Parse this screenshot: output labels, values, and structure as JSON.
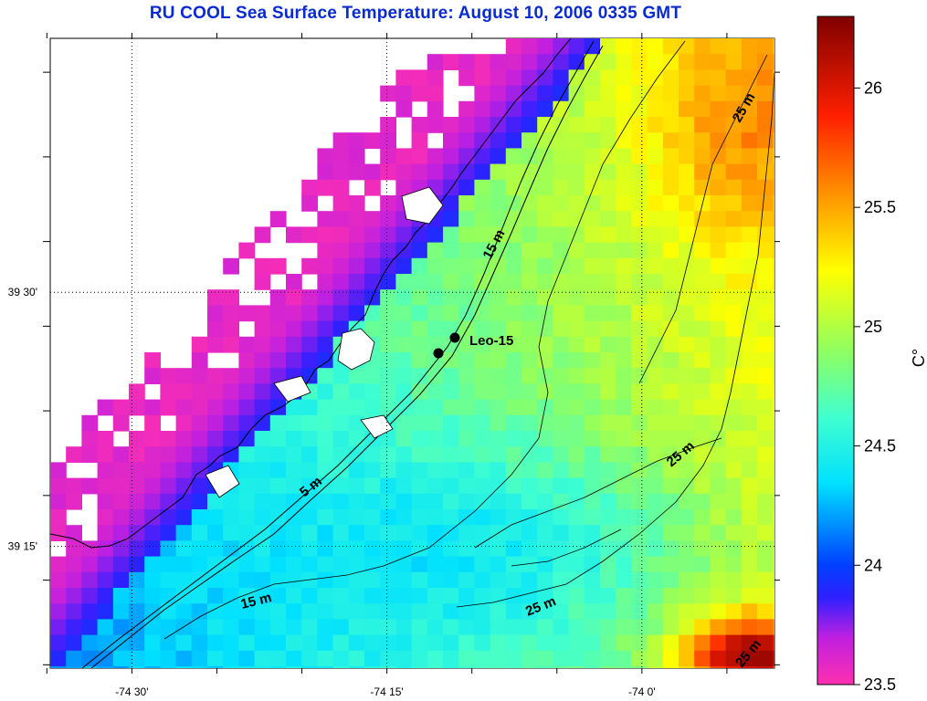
{
  "title": "RU COOL  Sea Surface Temperature:  August 10, 2006 0335 GMT",
  "map": {
    "lon_range": [
      -74.58,
      -73.87
    ],
    "lat_range": [
      39.13,
      39.75
    ],
    "lon_ticks": [
      {
        "value": -74.5,
        "label": "-74 30'"
      },
      {
        "value": -74.25,
        "label": "-74 15'"
      },
      {
        "value": -74.0,
        "label": "-74 0'"
      }
    ],
    "lat_ticks": [
      {
        "value": 39.5,
        "label": "39 30'"
      },
      {
        "value": 39.25,
        "label": "39 15'"
      }
    ],
    "contour_labels": [
      "5 m",
      "15 m",
      "15 m",
      "25 m",
      "25 m",
      "25 m",
      "25 m"
    ],
    "station": {
      "label": "Leo-15"
    }
  },
  "colorbar": {
    "min": 23.5,
    "max": 26.3,
    "ticks": [
      "23.5",
      "24",
      "24.5",
      "25",
      "25.5",
      "26"
    ],
    "unit": "C°",
    "colormap": [
      "#ff2fb0",
      "#2020ff",
      "#00ffff",
      "#70ff70",
      "#ffff00",
      "#ff9000",
      "#ff0000",
      "#800000"
    ]
  }
}
